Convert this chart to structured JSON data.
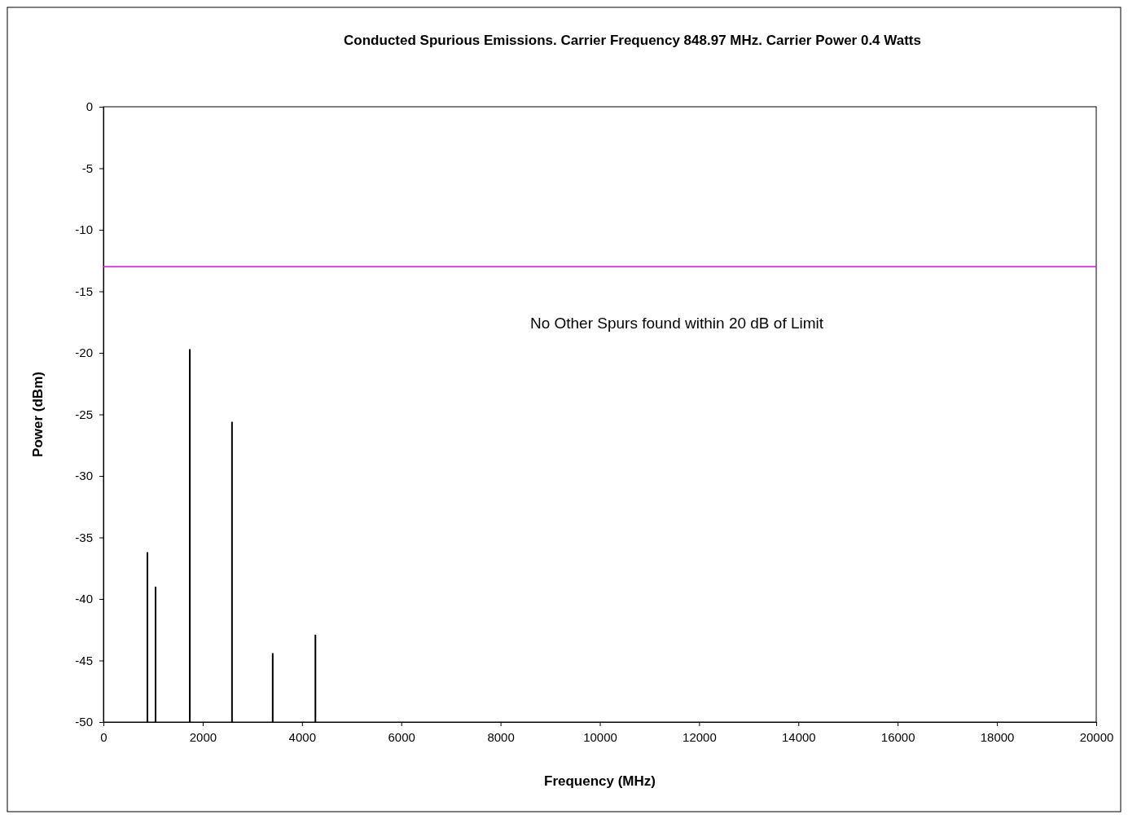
{
  "chart_data": {
    "type": "bar",
    "title": "Conducted Spurious Emissions. Carrier Frequency 848.97 MHz. Carrier Power 0.4 Watts",
    "xlabel": "Frequency (MHz)",
    "ylabel": "Power (dBm)",
    "x": [
      886,
      1050,
      1740,
      2590,
      3410,
      4270
    ],
    "values": [
      13.8,
      11.0,
      30.3,
      24.4,
      5.6,
      7.1
    ],
    "base": [
      -50,
      -50,
      -50,
      -50,
      -50,
      -50
    ],
    "color": "#000000",
    "xlim": [
      0,
      20000
    ],
    "xticks": [
      0,
      2000,
      4000,
      6000,
      8000,
      10000,
      12000,
      14000,
      16000,
      18000,
      20000
    ],
    "ylim": [
      -50,
      0
    ],
    "yticks": [
      0,
      -5,
      -10,
      -15,
      -20,
      -25,
      -30,
      -35,
      -40,
      -45,
      -50
    ],
    "ref_lines": [
      {
        "axis": "y",
        "value": -13,
        "color": "#ff00ff"
      }
    ],
    "annotations": [
      "No Other Spurs found within 20 dB of Limit"
    ],
    "grid": false
  }
}
